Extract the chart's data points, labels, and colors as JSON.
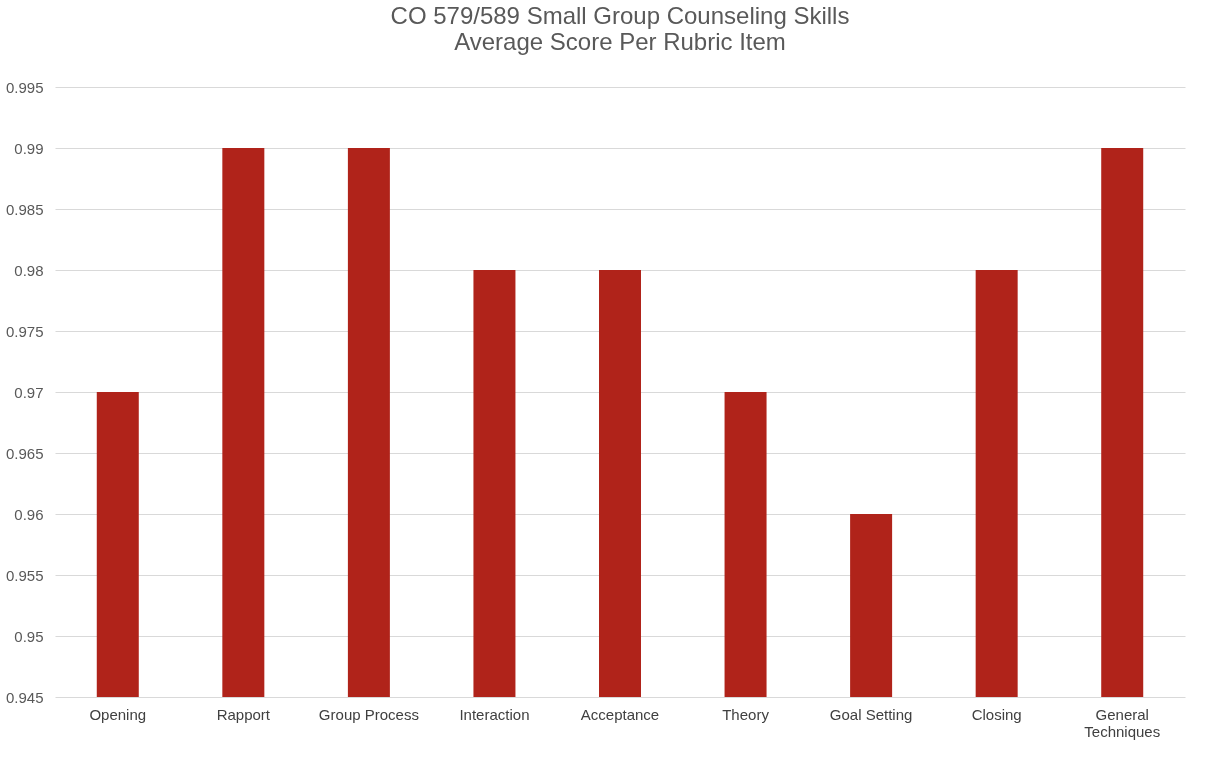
{
  "chart_data": {
    "type": "bar",
    "title": "CO 579/589 Small Group Counseling Skills\nAverage Score Per Rubric Item",
    "categories": [
      "Opening",
      "Rapport",
      "Group Process",
      "Interaction",
      "Acceptance",
      "Theory",
      "Goal Setting",
      "Closing",
      "General Techniques"
    ],
    "values": [
      0.97,
      0.99,
      0.99,
      0.98,
      0.98,
      0.97,
      0.96,
      0.98,
      0.99
    ],
    "color": "#b0231a",
    "ylim": [
      0.945,
      0.995
    ],
    "yticks": [
      0.945,
      0.95,
      0.955,
      0.96,
      0.965,
      0.97,
      0.975,
      0.98,
      0.985,
      0.99,
      0.995
    ],
    "grid": "y"
  }
}
